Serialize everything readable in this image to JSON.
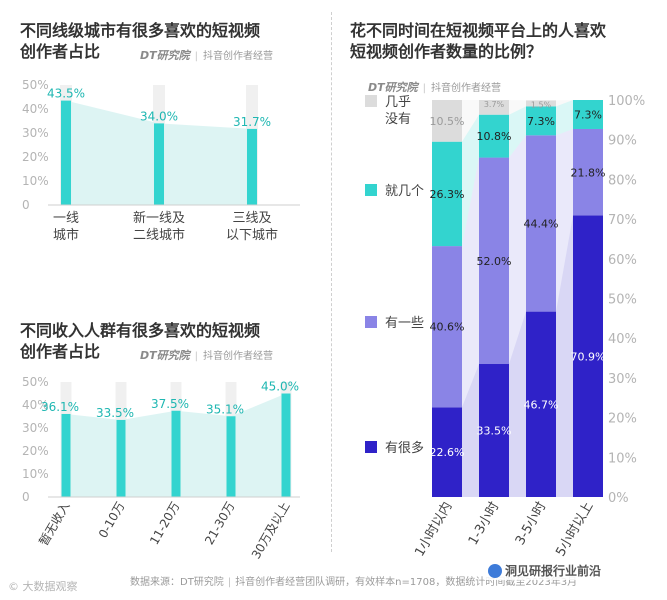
{
  "brand": {
    "logo": "DT研究院",
    "sep": "|",
    "tag": "抖音创作者经营"
  },
  "footer": {
    "source": "数据来源：DT研究院",
    "sep": "|",
    "detail": "抖音创作者经营团队调研，有效样本n=1708，数据统计时间截至2023年3月"
  },
  "watermarks": {
    "left": "© 大数据观察",
    "right": "洞见研报行业前沿"
  },
  "colors": {
    "cyan": "#33d4cf",
    "light_cyan": "#d9f3f2",
    "gray": "#dcdcdc",
    "navy": "#2f22c8",
    "purple": "#8a84e6",
    "bg_band": "#ececf6",
    "gridtext": "#b4b4b4"
  },
  "chart_data": [
    {
      "id": "city",
      "type": "bar",
      "title": "不同线级城市有很多喜欢的短视频\n创作者占比",
      "categories": [
        "一线\n城市",
        "新一线及\n二线城市",
        "三线及\n以下城市"
      ],
      "values": [
        43.5,
        34.0,
        31.7
      ],
      "value_labels": [
        "43.5%",
        "34.0%",
        "31.7%"
      ],
      "ylim": [
        0,
        50
      ],
      "yticks": [
        "0",
        "10%",
        "20%",
        "30%",
        "40%",
        "50%"
      ],
      "color": "#33d4cf"
    },
    {
      "id": "income",
      "type": "bar",
      "title": "不同收入人群有很多喜欢的短视频\n创作者占比",
      "categories": [
        "暂无收入",
        "0-10万",
        "11-20万",
        "21-30万",
        "30万及以上"
      ],
      "values": [
        36.1,
        33.5,
        37.5,
        35.1,
        45.0
      ],
      "value_labels": [
        "36.1%",
        "33.5%",
        "37.5%",
        "35.1%",
        "45.0%"
      ],
      "ylim": [
        0,
        50
      ],
      "yticks": [
        "0",
        "10%",
        "20%",
        "30%",
        "40%",
        "50%"
      ],
      "color": "#33d4cf"
    },
    {
      "id": "time",
      "type": "bar",
      "stacked": true,
      "title": "花不同时间在短视频平台上的人喜欢\n短视频创作者数量的比例？",
      "categories": [
        "1小时以内",
        "1-3小时",
        "3-5小时",
        "5小时以上"
      ],
      "series": [
        {
          "name": "有很多",
          "values": [
            22.6,
            33.5,
            46.7,
            70.9
          ],
          "labels": [
            "22.6%",
            "33.5%",
            "46.7%",
            "70.9%"
          ],
          "color": "#2f22c8"
        },
        {
          "name": "有一些",
          "values": [
            40.6,
            52.0,
            44.4,
            21.8
          ],
          "labels": [
            "40.6%",
            "52.0%",
            "44.4%",
            "21.8%"
          ],
          "color": "#8a84e6"
        },
        {
          "name": "就几个",
          "values": [
            26.3,
            10.8,
            7.3,
            7.3
          ],
          "labels": [
            "26.3%",
            "10.8%",
            "7.3%",
            "7.3%"
          ],
          "color": "#33d4cf"
        },
        {
          "name": "几乎\n没有",
          "values": [
            10.5,
            3.7,
            1.5,
            0.0
          ],
          "labels": [
            "10.5%",
            "3.7%",
            "1.5%",
            ""
          ],
          "color": "#dcdcdc"
        }
      ],
      "ylim": [
        0,
        100
      ],
      "yticks": [
        "0%",
        "10%",
        "20%",
        "30%",
        "40%",
        "50%",
        "60%",
        "70%",
        "80%",
        "90%",
        "100%"
      ],
      "legend_position": "left"
    }
  ]
}
